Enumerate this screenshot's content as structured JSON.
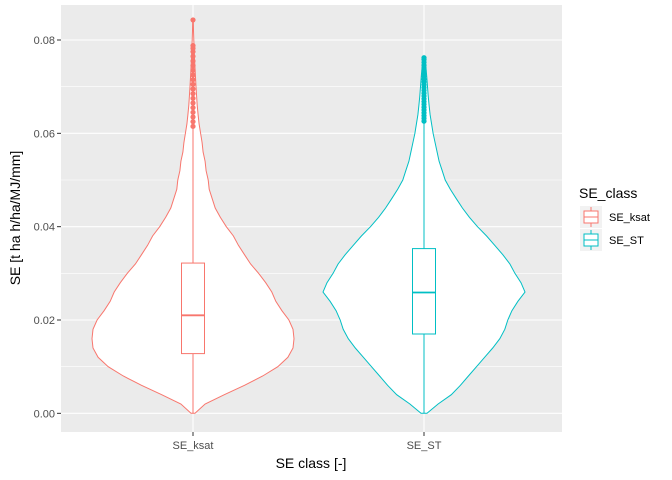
{
  "chart_data": {
    "type": "violin",
    "xlabel": "SE class [-]",
    "ylabel": "SE [t ha h/ha/MJ/mm]",
    "ylim": [
      -0.004,
      0.0875
    ],
    "yticks": [
      0.0,
      0.02,
      0.04,
      0.06,
      0.08
    ],
    "ytick_labels": [
      "0.00",
      "0.02",
      "0.04",
      "0.06",
      "0.08"
    ],
    "categories": [
      "SE_ksat",
      "SE_ST"
    ],
    "grid": true,
    "legend": {
      "title": "SE_class",
      "position": "right",
      "entries": [
        "SE_ksat",
        "SE_ST"
      ]
    },
    "series": [
      {
        "name": "SE_ksat",
        "color": "#F8766D",
        "box": {
          "q1": 0.0128,
          "median": 0.021,
          "q3": 0.0322
        },
        "whisker": [
          0.0,
          0.0613
        ],
        "outliers": [
          0.0615,
          0.0625,
          0.0635,
          0.0645,
          0.0655,
          0.0665,
          0.0675,
          0.0685,
          0.0695,
          0.0705,
          0.0715,
          0.0725,
          0.0735,
          0.0745,
          0.0755,
          0.0765,
          0.0775,
          0.0782,
          0.0788,
          0.0843
        ],
        "violin": [
          [
            0.0,
            0.02
          ],
          [
            0.002,
            0.12
          ],
          [
            0.004,
            0.31
          ],
          [
            0.006,
            0.51
          ],
          [
            0.008,
            0.69
          ],
          [
            0.01,
            0.84
          ],
          [
            0.012,
            0.94
          ],
          [
            0.014,
            0.99
          ],
          [
            0.016,
            1.0
          ],
          [
            0.018,
            0.99
          ],
          [
            0.02,
            0.95
          ],
          [
            0.022,
            0.88
          ],
          [
            0.024,
            0.82
          ],
          [
            0.026,
            0.78
          ],
          [
            0.028,
            0.72
          ],
          [
            0.03,
            0.65
          ],
          [
            0.032,
            0.57
          ],
          [
            0.034,
            0.51
          ],
          [
            0.036,
            0.45
          ],
          [
            0.038,
            0.4
          ],
          [
            0.04,
            0.33
          ],
          [
            0.042,
            0.27
          ],
          [
            0.044,
            0.22
          ],
          [
            0.046,
            0.19
          ],
          [
            0.048,
            0.16
          ],
          [
            0.05,
            0.15
          ],
          [
            0.052,
            0.13
          ],
          [
            0.054,
            0.12
          ],
          [
            0.056,
            0.1
          ],
          [
            0.058,
            0.09
          ],
          [
            0.06,
            0.075
          ],
          [
            0.062,
            0.06
          ],
          [
            0.064,
            0.05
          ],
          [
            0.066,
            0.042
          ],
          [
            0.068,
            0.036
          ],
          [
            0.07,
            0.03
          ],
          [
            0.072,
            0.025
          ],
          [
            0.074,
            0.02
          ],
          [
            0.076,
            0.015
          ],
          [
            0.078,
            0.012
          ],
          [
            0.08,
            0.008
          ],
          [
            0.082,
            0.005
          ],
          [
            0.084,
            0.003
          ],
          [
            0.0843,
            0.0
          ]
        ]
      },
      {
        "name": "SE_ST",
        "color": "#00BFC4",
        "box": {
          "q1": 0.017,
          "median": 0.0259,
          "q3": 0.0353
        },
        "whisker": [
          0.0,
          0.0624
        ],
        "outliers": [
          0.0626,
          0.0632,
          0.0638,
          0.0644,
          0.065,
          0.0656,
          0.0662,
          0.0668,
          0.0674,
          0.068,
          0.0686,
          0.0692,
          0.0698,
          0.0704,
          0.071,
          0.0716,
          0.0722,
          0.0728,
          0.0734,
          0.074,
          0.0746,
          0.0752,
          0.0758,
          0.0762
        ],
        "violin": [
          [
            0.0,
            0.03
          ],
          [
            0.002,
            0.14
          ],
          [
            0.004,
            0.27
          ],
          [
            0.006,
            0.36
          ],
          [
            0.008,
            0.44
          ],
          [
            0.01,
            0.52
          ],
          [
            0.012,
            0.6
          ],
          [
            0.014,
            0.68
          ],
          [
            0.016,
            0.75
          ],
          [
            0.018,
            0.8
          ],
          [
            0.02,
            0.83
          ],
          [
            0.022,
            0.87
          ],
          [
            0.024,
            0.93
          ],
          [
            0.026,
            1.0
          ],
          [
            0.028,
            0.96
          ],
          [
            0.03,
            0.9
          ],
          [
            0.032,
            0.85
          ],
          [
            0.034,
            0.78
          ],
          [
            0.036,
            0.7
          ],
          [
            0.038,
            0.62
          ],
          [
            0.04,
            0.53
          ],
          [
            0.042,
            0.45
          ],
          [
            0.044,
            0.38
          ],
          [
            0.046,
            0.32
          ],
          [
            0.048,
            0.26
          ],
          [
            0.05,
            0.21
          ],
          [
            0.052,
            0.18
          ],
          [
            0.054,
            0.15
          ],
          [
            0.056,
            0.13
          ],
          [
            0.058,
            0.11
          ],
          [
            0.06,
            0.09
          ],
          [
            0.062,
            0.075
          ],
          [
            0.064,
            0.06
          ],
          [
            0.066,
            0.05
          ],
          [
            0.068,
            0.042
          ],
          [
            0.07,
            0.035
          ],
          [
            0.072,
            0.028
          ],
          [
            0.074,
            0.02
          ],
          [
            0.076,
            0.01
          ],
          [
            0.0762,
            0.0
          ]
        ]
      }
    ]
  }
}
